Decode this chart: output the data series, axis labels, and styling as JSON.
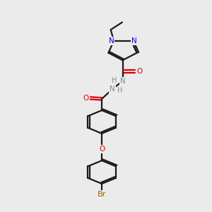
{
  "bg_color": "#ebebeb",
  "bond_color": "#1a1a1a",
  "N_color": "#0000ee",
  "O_color": "#dd0000",
  "Br_color": "#996600",
  "H_color": "#888888",
  "lw": 1.6,
  "fs": 7.5,
  "xlim": [
    0,
    10
  ],
  "ylim": [
    0,
    14
  ]
}
